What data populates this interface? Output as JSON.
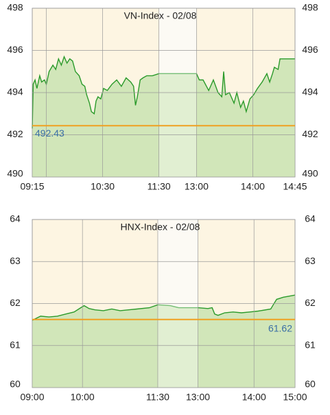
{
  "chart_data": [
    {
      "type": "area",
      "title": "VN-Index - 02/08",
      "x": [
        0,
        1,
        3,
        5,
        8,
        10,
        13,
        15,
        18,
        22,
        25,
        28,
        31,
        34,
        37,
        40,
        43,
        46,
        50,
        53,
        56,
        58,
        61,
        63,
        66,
        68,
        70,
        73,
        76,
        80,
        85,
        90,
        95,
        100,
        105,
        108,
        110,
        112,
        115,
        118,
        122,
        128,
        135,
        175,
        178,
        182,
        188,
        193,
        198,
        202,
        204,
        206,
        210,
        215,
        218,
        222,
        225,
        228,
        232,
        236,
        240,
        245,
        250,
        253,
        256,
        258,
        262,
        264,
        270,
        280
      ],
      "series": [
        {
          "name": "VN-Index",
          "color": "#2a9a2a",
          "values": [
            492.3,
            494.4,
            494.6,
            494.2,
            494.8,
            494.5,
            494.6,
            494.4,
            495.0,
            495.3,
            495.1,
            495.6,
            495.3,
            495.7,
            495.4,
            495.6,
            495.5,
            495.0,
            494.8,
            494.4,
            494.3,
            493.9,
            493.5,
            493.1,
            493.0,
            493.6,
            493.8,
            493.7,
            494.2,
            494.1,
            494.4,
            494.6,
            494.3,
            494.7,
            494.5,
            494.3,
            493.4,
            493.8,
            494.6,
            494.7,
            494.8,
            494.8,
            494.9,
            494.9,
            494.6,
            494.6,
            494.1,
            494.6,
            494.0,
            493.8,
            495.0,
            493.9,
            494.0,
            493.5,
            494.0,
            493.3,
            493.6,
            493.1,
            493.7,
            493.9,
            494.2,
            494.5,
            494.9,
            494.5,
            494.9,
            495.2,
            495.1,
            495.6,
            495.6,
            495.6
          ]
        }
      ],
      "xlim": [
        0,
        280
      ],
      "xticks": [
        {
          "value": 0,
          "label": "09:15"
        },
        {
          "value": 15,
          "label": null
        },
        {
          "value": 75,
          "label": "10:30"
        },
        {
          "value": 135,
          "label": "11:30"
        },
        {
          "value": 175,
          "label": "13:00"
        },
        {
          "value": 235,
          "label": "14:00"
        },
        {
          "value": 280,
          "label": "14:45"
        }
      ],
      "ylim": [
        490,
        498
      ],
      "yticks": [
        490,
        492,
        494,
        496,
        498
      ],
      "break": [
        135,
        175
      ],
      "reference": 492.43,
      "reference_label_side": "left",
      "grid": true
    },
    {
      "type": "area",
      "title": "HNX-Index - 02/08",
      "x": [
        0,
        5,
        10,
        20,
        30,
        40,
        50,
        58,
        62,
        68,
        75,
        85,
        95,
        105,
        115,
        125,
        140,
        150,
        165,
        175,
        198,
        210,
        215,
        218,
        222,
        230,
        240,
        250,
        260,
        270,
        285,
        288,
        292,
        300,
        314
      ],
      "series": [
        {
          "name": "HNX-Index",
          "color": "#2a9a2a",
          "values": [
            61.6,
            61.65,
            61.7,
            61.68,
            61.7,
            61.75,
            61.8,
            61.9,
            61.95,
            61.88,
            61.85,
            61.83,
            61.87,
            61.83,
            61.85,
            61.87,
            61.9,
            61.97,
            61.95,
            61.9,
            61.9,
            61.88,
            61.9,
            61.75,
            61.72,
            61.78,
            61.8,
            61.78,
            61.8,
            61.82,
            61.87,
            61.97,
            62.1,
            62.15,
            62.2
          ]
        }
      ],
      "xlim": [
        0,
        314
      ],
      "xticks": [
        {
          "value": 0,
          "label": "09:00"
        },
        {
          "value": 60,
          "label": "10:00"
        },
        {
          "value": 150,
          "label": "11:30"
        },
        {
          "value": 198,
          "label": "13:00"
        },
        {
          "value": 265,
          "label": "14:00"
        },
        {
          "value": 314,
          "label": "15:00"
        }
      ],
      "ylim": [
        60,
        64
      ],
      "yticks": [
        60,
        61,
        62,
        63,
        64
      ],
      "break": [
        150,
        198
      ],
      "reference": 61.62,
      "reference_label_side": "right",
      "grid": true
    }
  ]
}
